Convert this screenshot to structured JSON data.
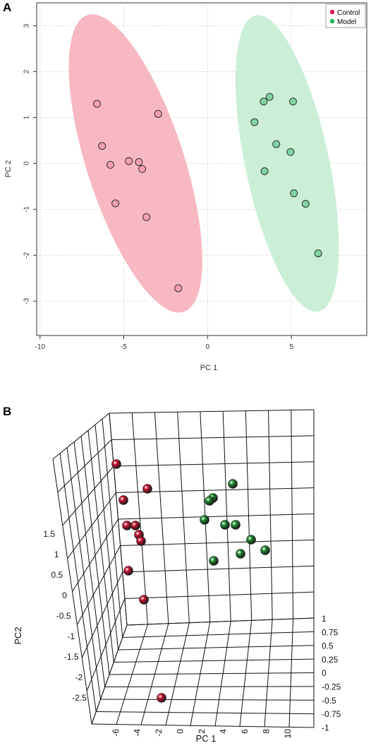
{
  "chart_data": [
    {
      "type": "scatter",
      "panel_label": "A",
      "xlabel": "PC 1",
      "ylabel": "PC 2",
      "xlim": [
        -10.2,
        9.5
      ],
      "ylim": [
        -3.75,
        3.5
      ],
      "xticks": [
        -10,
        -5,
        0,
        5
      ],
      "yticks": [
        -3,
        -2,
        -1,
        0,
        1,
        2,
        3
      ],
      "grid": true,
      "legend_position": "top-right",
      "series": [
        {
          "name": "Control",
          "color": "#e8174f",
          "fill": "#f4a0b0",
          "ellipse_color": "#f7b8c2",
          "points": [
            {
              "x": -6.6,
              "y": 1.3
            },
            {
              "x": -6.3,
              "y": 0.38
            },
            {
              "x": -5.8,
              "y": -0.03
            },
            {
              "x": -4.7,
              "y": 0.05
            },
            {
              "x": -4.1,
              "y": 0.03
            },
            {
              "x": -3.9,
              "y": -0.12
            },
            {
              "x": -2.95,
              "y": 1.08
            },
            {
              "x": -5.5,
              "y": -0.87
            },
            {
              "x": -3.65,
              "y": -1.17
            },
            {
              "x": -1.75,
              "y": -2.72
            }
          ],
          "ellipse": {
            "cx": -4.3,
            "cy": 0.0,
            "rx": 2.9,
            "ry": 3.4,
            "rotation_deg": -18
          }
        },
        {
          "name": "Model",
          "color": "#1db954",
          "fill": "#7fd3a1",
          "ellipse_color": "#cbeed7",
          "points": [
            {
              "x": 3.35,
              "y": 1.35
            },
            {
              "x": 3.7,
              "y": 1.45
            },
            {
              "x": 5.1,
              "y": 1.35
            },
            {
              "x": 2.8,
              "y": 0.9
            },
            {
              "x": 4.1,
              "y": 0.42
            },
            {
              "x": 4.95,
              "y": 0.25
            },
            {
              "x": 3.4,
              "y": -0.17
            },
            {
              "x": 5.15,
              "y": -0.65
            },
            {
              "x": 5.85,
              "y": -0.88
            },
            {
              "x": 6.6,
              "y": -1.96
            }
          ],
          "ellipse": {
            "cx": 4.75,
            "cy": 0.0,
            "rx": 2.5,
            "ry": 3.3,
            "rotation_deg": -12
          }
        }
      ]
    },
    {
      "type": "scatter",
      "subtype": "3d",
      "panel_label": "B",
      "xlabel": "PC 1",
      "ylabel": "PC2",
      "xticks": [
        "-6",
        "-4",
        "-2",
        "0",
        "2",
        "4",
        "6",
        "8",
        "10"
      ],
      "yticks": [
        "1.5",
        "1",
        "0.5",
        "0",
        "-0.5",
        "-1",
        "-1.5",
        "-2",
        "-2.5"
      ],
      "zticks": [
        "1",
        "0.75",
        "0.5",
        "0.25",
        "0",
        "-0.25",
        "-0.5",
        "-0.75",
        "-1"
      ],
      "series": [
        {
          "name": "",
          "color": "#c8102e",
          "points": [
            {
              "x": 165,
              "y": 97
            },
            {
              "x": 209,
              "y": 132
            },
            {
              "x": 175,
              "y": 148
            },
            {
              "x": 180,
              "y": 184
            },
            {
              "x": 192,
              "y": 184
            },
            {
              "x": 197,
              "y": 197
            },
            {
              "x": 200,
              "y": 206
            },
            {
              "x": 182,
              "y": 248
            },
            {
              "x": 204,
              "y": 289
            },
            {
              "x": 229,
              "y": 428
            }
          ]
        },
        {
          "name": "",
          "color": "#1e8a2e",
          "points": [
            {
              "x": 330,
              "y": 125
            },
            {
              "x": 302,
              "y": 145
            },
            {
              "x": 297,
              "y": 149
            },
            {
              "x": 290,
              "y": 176
            },
            {
              "x": 319,
              "y": 183
            },
            {
              "x": 334,
              "y": 183
            },
            {
              "x": 356,
              "y": 204
            },
            {
              "x": 341,
              "y": 224
            },
            {
              "x": 376,
              "y": 219
            },
            {
              "x": 303,
              "y": 234
            }
          ]
        }
      ]
    }
  ]
}
